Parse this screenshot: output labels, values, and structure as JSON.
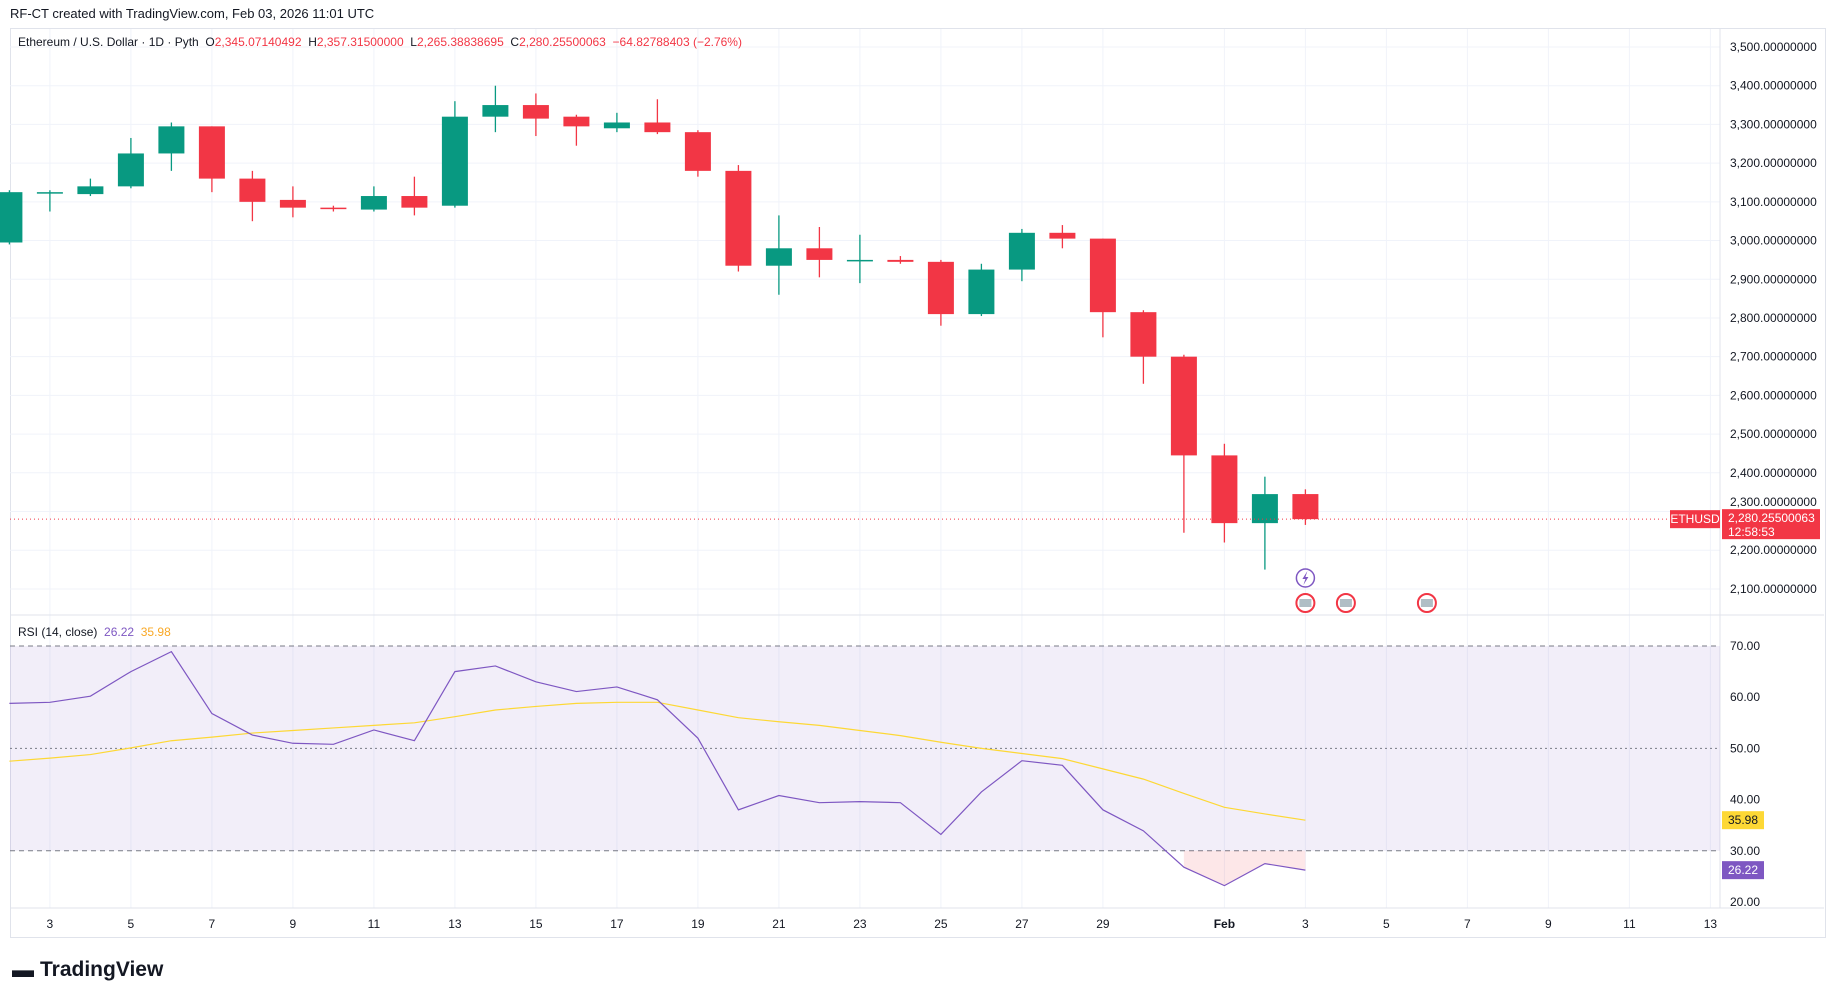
{
  "header": {
    "credit": "RF-CT created with TradingView.com, Feb 03, 2026 11:01 UTC"
  },
  "legend": {
    "symbol": "Ethereum / U.S. Dollar · 1D · Pyth",
    "o_label": "O",
    "o": "2,345.07140492",
    "h_label": "H",
    "h": "2,357.31500000",
    "l_label": "L",
    "l": "2,265.38838695",
    "c_label": "C",
    "c": "2,280.25500063",
    "change": "−64.82788403 (−2.76%)"
  },
  "price_badge": {
    "symbol": "ETHUSD",
    "price": "2,280.25500063",
    "countdown": "12:58:53"
  },
  "rsi_legend": {
    "name": "RSI (14, close)",
    "rsi": "26.22",
    "ma": "35.98"
  },
  "logo": "TradingView",
  "colors": {
    "up": "#089981",
    "down": "#f23645",
    "rsi": "#7e57c2",
    "rsi_ma": "#fdd835",
    "rsi_band": "#7e57c2"
  },
  "chart_data": [
    {
      "type": "candlestick",
      "title": "Ethereum / U.S. Dollar · 1D · Pyth",
      "ylim": [
        2050,
        3550
      ],
      "y_ticks": [
        "3,500.00000000",
        "3,400.00000000",
        "3,300.00000000",
        "3,200.00000000",
        "3,100.00000000",
        "3,000.00000000",
        "2,900.00000000",
        "2,800.00000000",
        "2,700.00000000",
        "2,600.00000000",
        "2,500.00000000",
        "2,400.00000000",
        "2,300.00000000",
        "2,200.00000000",
        "2,100.00000000"
      ],
      "x_ticks": [
        "3",
        "5",
        "7",
        "9",
        "11",
        "13",
        "15",
        "17",
        "19",
        "21",
        "23",
        "25",
        "27",
        "29",
        "Feb",
        "3",
        "5",
        "7",
        "9",
        "11",
        "13"
      ],
      "columns": [
        "date",
        "open",
        "high",
        "low",
        "close"
      ],
      "candles": [
        [
          "Jan 2",
          2995,
          3130,
          2990,
          3125
        ],
        [
          "Jan 3",
          3122,
          3130,
          3075,
          3125
        ],
        [
          "Jan 4",
          3120,
          3160,
          3115,
          3140
        ],
        [
          "Jan 5",
          3140,
          3265,
          3135,
          3225
        ],
        [
          "Jan 6",
          3225,
          3305,
          3180,
          3295
        ],
        [
          "Jan 7",
          3295,
          3295,
          3125,
          3160
        ],
        [
          "Jan 8",
          3160,
          3180,
          3050,
          3100
        ],
        [
          "Jan 9",
          3105,
          3140,
          3060,
          3085
        ],
        [
          "Jan 10",
          3085,
          3090,
          3075,
          3082
        ],
        [
          "Jan 11",
          3080,
          3140,
          3075,
          3115
        ],
        [
          "Jan 12",
          3115,
          3165,
          3065,
          3085
        ],
        [
          "Jan 13",
          3090,
          3360,
          3085,
          3320
        ],
        [
          "Jan 14",
          3320,
          3400,
          3280,
          3350
        ],
        [
          "Jan 15",
          3350,
          3380,
          3270,
          3315
        ],
        [
          "Jan 16",
          3320,
          3325,
          3245,
          3295
        ],
        [
          "Jan 17",
          3290,
          3330,
          3280,
          3305
        ],
        [
          "Jan 18",
          3305,
          3365,
          3275,
          3280
        ],
        [
          "Jan 19",
          3280,
          3285,
          3165,
          3180
        ],
        [
          "Jan 20",
          3180,
          3195,
          2920,
          2935
        ],
        [
          "Jan 21",
          2935,
          3065,
          2860,
          2980
        ],
        [
          "Jan 22",
          2980,
          3035,
          2905,
          2950
        ],
        [
          "Jan 23",
          2948,
          3015,
          2890,
          2950
        ],
        [
          "Jan 24",
          2950,
          2960,
          2940,
          2945
        ],
        [
          "Jan 25",
          2945,
          2950,
          2780,
          2810
        ],
        [
          "Jan 26",
          2810,
          2940,
          2805,
          2925
        ],
        [
          "Jan 27",
          2925,
          3030,
          2895,
          3020
        ],
        [
          "Jan 28",
          3020,
          3040,
          2980,
          3005
        ],
        [
          "Jan 29",
          3005,
          3005,
          2750,
          2815
        ],
        [
          "Jan 30",
          2815,
          2820,
          2630,
          2700
        ],
        [
          "Jan 31",
          2700,
          2705,
          2245,
          2445
        ],
        [
          "Feb 1",
          2445,
          2475,
          2220,
          2270
        ],
        [
          "Feb 2",
          2270,
          2390,
          2150,
          2345
        ],
        [
          "Feb 3",
          2345.07,
          2357.32,
          2265.39,
          2280.26
        ]
      ],
      "last_price": 2280.26
    },
    {
      "type": "line",
      "title": "RSI (14, close)",
      "ylim": [
        17,
        75
      ],
      "y_ticks": [
        "70.00",
        "60.00",
        "50.00",
        "40.00",
        "30.00",
        "20.00"
      ],
      "bands": [
        30,
        50,
        70
      ],
      "x": [
        "Jan 2",
        "Jan 3",
        "Jan 4",
        "Jan 5",
        "Jan 6",
        "Jan 7",
        "Jan 8",
        "Jan 9",
        "Jan 10",
        "Jan 11",
        "Jan 12",
        "Jan 13",
        "Jan 14",
        "Jan 15",
        "Jan 16",
        "Jan 17",
        "Jan 18",
        "Jan 19",
        "Jan 20",
        "Jan 21",
        "Jan 22",
        "Jan 23",
        "Jan 24",
        "Jan 25",
        "Jan 26",
        "Jan 27",
        "Jan 28",
        "Jan 29",
        "Jan 30",
        "Jan 31",
        "Feb 1",
        "Feb 2",
        "Feb 3"
      ],
      "series": [
        {
          "name": "RSI",
          "values": [
            58.8,
            59,
            60.2,
            65,
            68.9,
            56.8,
            52.6,
            51,
            50.8,
            53.6,
            51.5,
            65,
            66.1,
            63,
            61.1,
            62,
            59.5,
            52,
            38,
            40.8,
            39.4,
            39.6,
            39.4,
            33.2,
            41.5,
            47.6,
            46.7,
            38,
            33.9,
            26.8,
            23.2,
            27.5,
            26.22
          ]
        },
        {
          "name": "MA",
          "values": [
            47.5,
            48.1,
            48.8,
            50.1,
            51.5,
            52.2,
            53,
            53.5,
            54,
            54.5,
            55,
            56.2,
            57.5,
            58.2,
            58.8,
            59,
            59,
            57.5,
            56,
            55.2,
            54.5,
            53.5,
            52.5,
            51.2,
            50,
            49,
            48,
            46,
            44,
            41.2,
            38.5,
            37.2,
            35.98
          ]
        }
      ]
    }
  ]
}
